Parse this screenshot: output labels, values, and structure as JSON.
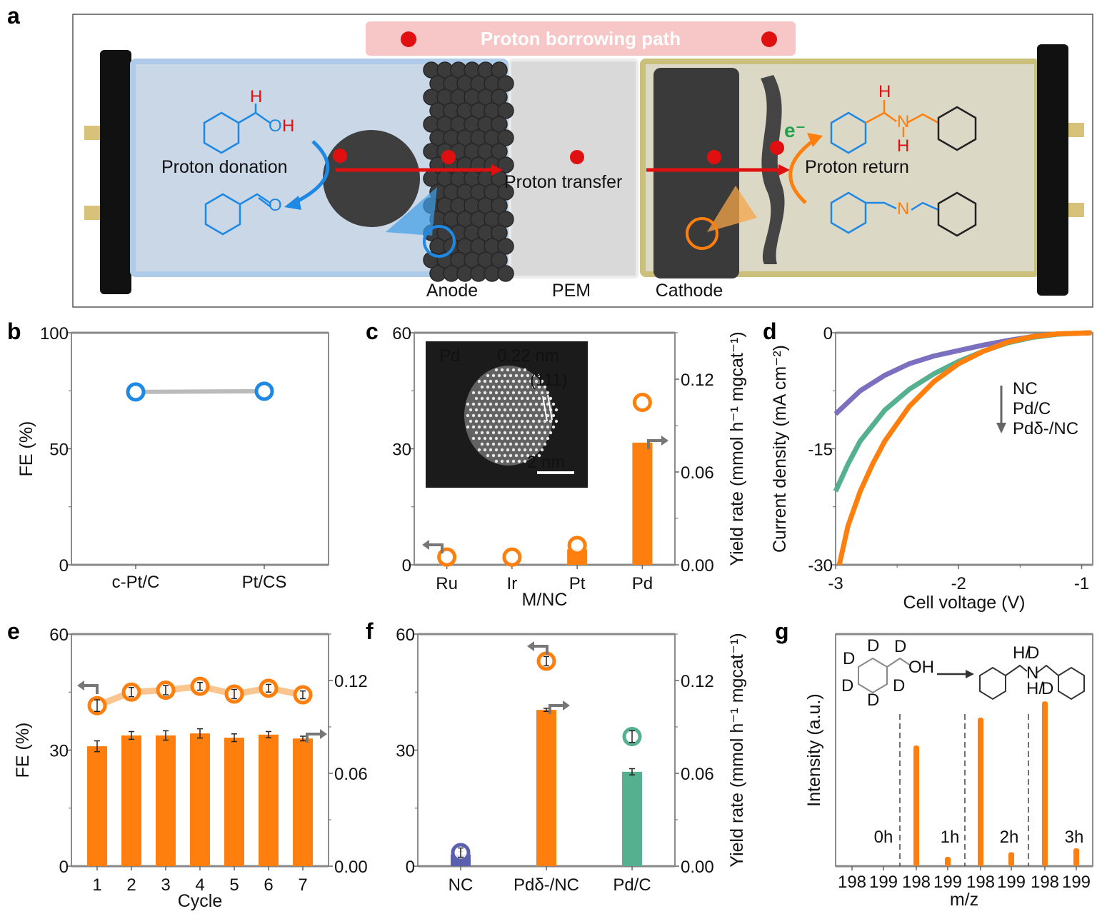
{
  "panel_labels": [
    "a",
    "b",
    "c",
    "d",
    "e",
    "f",
    "g"
  ],
  "panel_a": {
    "banner": "Proton borrowing path",
    "proton_donation": "Proton donation",
    "proton_transfer": "Proton transfer",
    "proton_return": "Proton return",
    "electron": "e⁻",
    "anode": "Anode",
    "pem": "PEM",
    "cathode": "Cathode",
    "molecules": {
      "alcohol_h": "H",
      "alcohol_o": "O",
      "alcohol_oh_h": "H",
      "aldehyde_o": "O",
      "amine_h_top": "H",
      "amine_n": "N",
      "amine_h_bottom": "H",
      "imine_n": "N"
    },
    "colors": {
      "proton": "#e01010",
      "anode_side": "#1e88e5",
      "cathode_side": "#ff7f0e",
      "electron": "#1fa34a",
      "banner": "#f7c6c6"
    }
  },
  "chart_data": [
    {
      "panel": "b",
      "type": "line",
      "categories": [
        "c-Pt/C",
        "Pt/CS"
      ],
      "series": [
        {
          "values": [
            74.5,
            74.8
          ],
          "color": "#1e88e5",
          "line_color": "#bbbbbb"
        }
      ],
      "ylabel": "FE (%)",
      "xlabel": "",
      "ylim": [
        0,
        100
      ],
      "yticks": [
        "0",
        "50",
        "100"
      ]
    },
    {
      "panel": "c",
      "type": "bar",
      "categories": [
        "Ru",
        "Ir",
        "Pt",
        "Pd"
      ],
      "xlabel": "M/NC",
      "ylabel": "",
      "ylim": [
        0,
        60
      ],
      "yticks": [
        "0",
        "30",
        "60"
      ],
      "y2label": "Yield rate (mmol h⁻¹ mgcat⁻¹)",
      "y2lim": [
        0,
        0.15
      ],
      "y2ticks": [
        "0.00",
        "0.06",
        "0.12"
      ],
      "series": [
        {
          "axis": "left",
          "kind": "circle",
          "values": [
            2,
            2,
            5,
            42
          ],
          "color": "#ff7f0e"
        },
        {
          "axis": "right",
          "kind": "bar",
          "values": [
            0,
            0,
            0.01,
            0.079
          ],
          "color": "#ff7f0e"
        }
      ],
      "inset": {
        "element": "Pd",
        "spacing": "0.22 nm",
        "plane": "(111)",
        "scale": "2 nm"
      }
    },
    {
      "panel": "d",
      "type": "line",
      "xlabel": "Cell voltage (V)",
      "ylabel": "Current density (mA cm⁻²)",
      "xlim": [
        -3,
        -0.91
      ],
      "ylim": [
        -30,
        0
      ],
      "xticks": [
        "-3",
        "-2",
        "-1"
      ],
      "yticks": [
        "-30",
        "-15",
        "0"
      ],
      "series": [
        {
          "name": "NC",
          "color": "#7b6fc0",
          "x": [
            -3,
            -2.8,
            -2.6,
            -2.4,
            -2.2,
            -2.0,
            -1.8,
            -1.6,
            -1.4,
            -1.2,
            -1.0,
            -0.92
          ],
          "y": [
            -10.5,
            -7.5,
            -5.5,
            -4.0,
            -3.0,
            -2.3,
            -1.6,
            -1.0,
            -0.5,
            -0.15,
            -0.05,
            0
          ]
        },
        {
          "name": "Pd/C",
          "color": "#55b08f",
          "x": [
            -3,
            -2.9,
            -2.8,
            -2.6,
            -2.4,
            -2.2,
            -2.0,
            -1.8,
            -1.6,
            -1.4,
            -1.2,
            -1.0,
            -0.92
          ],
          "y": [
            -20.5,
            -17,
            -14,
            -10,
            -7.3,
            -5.3,
            -3.7,
            -2.4,
            -1.3,
            -0.6,
            -0.2,
            -0.05,
            0
          ]
        },
        {
          "name": "Pdδ-/NC",
          "color": "#ff7f0e",
          "x": [
            -2.97,
            -2.9,
            -2.8,
            -2.7,
            -2.6,
            -2.4,
            -2.2,
            -2.0,
            -1.8,
            -1.6,
            -1.4,
            -1.2,
            -1.0,
            -0.92
          ],
          "y": [
            -30,
            -25,
            -20.5,
            -17,
            -14,
            -9.5,
            -6.3,
            -4.0,
            -2.4,
            -1.2,
            -0.5,
            -0.15,
            -0.05,
            0
          ]
        }
      ],
      "legend_position": "right"
    },
    {
      "panel": "e",
      "type": "bar",
      "categories": [
        "1",
        "2",
        "3",
        "4",
        "5",
        "6",
        "7"
      ],
      "xlabel": "Cycle",
      "ylabel": "FE (%)",
      "ylim": [
        0,
        60
      ],
      "yticks": [
        "0",
        "30",
        "60"
      ],
      "y2lim": [
        0,
        0.15
      ],
      "y2ticks": [
        "0.00",
        "0.06",
        "0.12"
      ],
      "series": [
        {
          "axis": "left",
          "kind": "circle",
          "values": [
            41.5,
            45.0,
            45.5,
            46.5,
            44.5,
            46.0,
            44.3
          ],
          "errors": [
            1.5,
            1.2,
            1.2,
            1.0,
            1.2,
            1.0,
            1.0
          ],
          "color": "#ff7f0e"
        },
        {
          "axis": "right",
          "kind": "bar",
          "values": [
            0.0775,
            0.0845,
            0.0845,
            0.0858,
            0.083,
            0.085,
            0.0825
          ],
          "errors": [
            0.0035,
            0.0025,
            0.003,
            0.003,
            0.0025,
            0.002,
            0.0015
          ],
          "color": "#ff7f0e"
        }
      ]
    },
    {
      "panel": "f",
      "type": "bar",
      "categories": [
        "NC",
        "Pdδ-/NC",
        "Pd/C"
      ],
      "xlabel": "",
      "ylabel": "",
      "ylim": [
        0,
        60
      ],
      "yticks": [
        "0",
        "30",
        "60"
      ],
      "y2label": "Yield rate (mmol h⁻¹ mgcat⁻¹)",
      "y2lim": [
        0,
        0.15
      ],
      "y2ticks": [
        "0.00",
        "0.06",
        "0.12"
      ],
      "series": [
        {
          "axis": "left",
          "kind": "circle",
          "values": [
            3.5,
            53,
            33.5
          ],
          "errors": [
            1.2,
            1.2,
            1.5
          ],
          "colors": [
            "#5b5fb0",
            "#ff7f0e",
            "#55b08f"
          ]
        },
        {
          "axis": "right",
          "kind": "bar",
          "values": [
            0.0075,
            0.101,
            0.061
          ],
          "errors": [
            0.002,
            0.001,
            0.002
          ],
          "colors": [
            "#5b5fb0",
            "#ff7f0e",
            "#55b08f"
          ]
        }
      ]
    },
    {
      "panel": "g",
      "type": "bar",
      "xlabel": "m/z",
      "ylabel": "Intensity (a.u.)",
      "groups": [
        "0h",
        "1h",
        "2h",
        "3h"
      ],
      "xticks": [
        "198",
        "199",
        "198",
        "199",
        "198",
        "199",
        "198",
        "199"
      ],
      "values": [
        0,
        0,
        0.52,
        0.04,
        0.64,
        0.06,
        0.71,
        0.077
      ],
      "color": "#ff7f0e",
      "inset": {
        "reactant_d_labels": [
          "D",
          "D",
          "D",
          "D",
          "D"
        ],
        "reactant_alpha_d": "D",
        "reactant_oh": "OH",
        "product_top_h": "H/",
        "product_top_d": "D",
        "product_n": "N",
        "product_bottom_h": "H/",
        "product_bottom_d": "D"
      }
    }
  ]
}
